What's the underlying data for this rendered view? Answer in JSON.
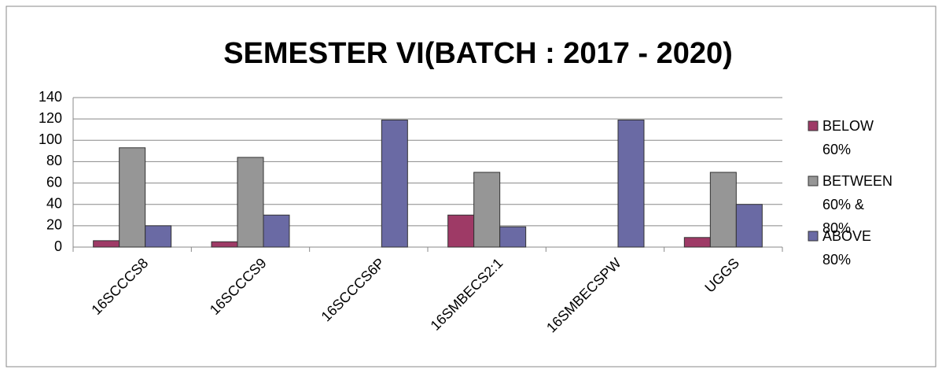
{
  "chart_data": {
    "type": "bar",
    "title": "SEMESTER VI(BATCH : 2017 - 2020)",
    "categories": [
      "16SCCCS8",
      "16SCCCS9",
      "16SCCCS6P",
      "16SMBECS2:1",
      "16SMBECSPW",
      "UGGS"
    ],
    "series": [
      {
        "name": "BELOW 60%",
        "color": "#9e3a66",
        "values": [
          6,
          5,
          0,
          30,
          0,
          9
        ]
      },
      {
        "name": "BETWEEN 60% & 80%",
        "color": "#969696",
        "values": [
          93,
          84,
          0,
          70,
          0,
          70
        ]
      },
      {
        "name": "ABOVE 80%",
        "color": "#6a6aa4",
        "values": [
          20,
          30,
          119,
          19,
          119,
          40
        ]
      }
    ],
    "ylim": [
      0,
      140
    ],
    "yticks": [
      0,
      20,
      40,
      60,
      80,
      100,
      120,
      140
    ],
    "grid": true,
    "legend": "right"
  }
}
